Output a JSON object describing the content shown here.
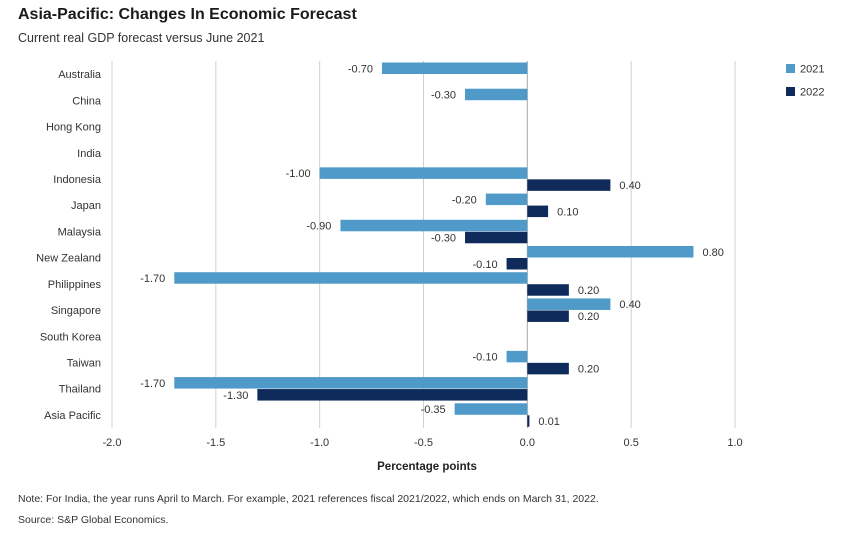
{
  "header": {
    "title": "Asia-Pacific: Changes In Economic Forecast",
    "subtitle": "Current real GDP forecast versus June 2021"
  },
  "footer": {
    "note": "Note: For India, the year runs April to March. For example, 2021 references fiscal 2021/2022, which ends on March 31, 2022.",
    "source": "Source: S&P Global Economics."
  },
  "colors": {
    "series_2021": "#4f9ac9",
    "series_2022": "#0f2b5b",
    "grid": "#d0d0d0",
    "zero_line": "#aaaaaa"
  },
  "chart_data": {
    "type": "bar",
    "orientation": "horizontal",
    "title": "Asia-Pacific: Changes In Economic Forecast",
    "subtitle": "Current real GDP forecast versus June 2021",
    "xlabel": "Percentage points",
    "ylabel": "",
    "xlim": [
      -2.0,
      1.0
    ],
    "xticks": [
      "-2.0",
      "-1.5",
      "-1.0",
      "-0.5",
      "0.0",
      "0.5",
      "1.0"
    ],
    "grid": true,
    "legend_position": "top-right",
    "categories": [
      "Australia",
      "China",
      "Hong Kong",
      "India",
      "Indonesia",
      "Japan",
      "Malaysia",
      "New Zealand",
      "Philippines",
      "Singapore",
      "South Korea",
      "Taiwan",
      "Thailand",
      "Asia Pacific"
    ],
    "series": [
      {
        "name": "2021",
        "color": "#4f9ac9",
        "values": [
          -0.7,
          -0.3,
          null,
          null,
          -1.0,
          -0.2,
          -0.9,
          0.8,
          -1.7,
          0.4,
          null,
          -0.1,
          -1.7,
          -0.35
        ],
        "labels": [
          "-0.70",
          "-0.30",
          null,
          null,
          "-1.00",
          "-0.20",
          "-0.90",
          "0.80",
          "-1.70",
          "0.40",
          null,
          "-0.10",
          "-1.70",
          "-0.35"
        ]
      },
      {
        "name": "2022",
        "color": "#0f2b5b",
        "values": [
          null,
          null,
          null,
          null,
          0.4,
          0.1,
          -0.3,
          -0.1,
          0.2,
          0.2,
          null,
          0.2,
          -1.3,
          0.01
        ],
        "labels": [
          null,
          null,
          null,
          null,
          "0.40",
          "0.10",
          "-0.30",
          "-0.10",
          "0.20",
          "0.20",
          null,
          "0.20",
          "-1.30",
          "0.01"
        ]
      }
    ]
  }
}
